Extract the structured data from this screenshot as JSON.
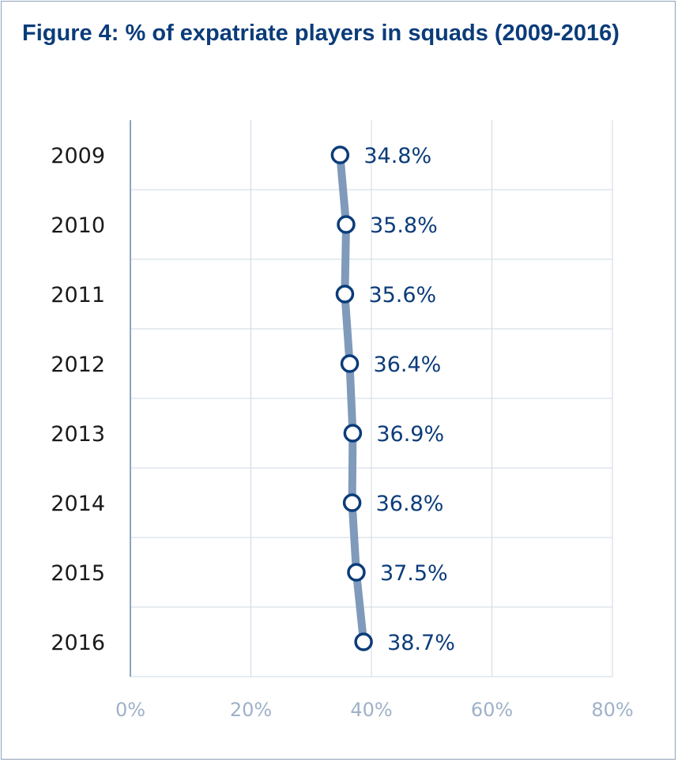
{
  "title": "Figure 4: % of expatriate players in squads (2009-2016)",
  "colors": {
    "title": "#0b3c7a",
    "line": "#7f9abb",
    "marker_stroke": "#0b3c7a",
    "marker_fill": "#ffffff",
    "grid": "#cfd8e3",
    "axis": "#8ea3bd",
    "tick_label": "#9fb1c8",
    "data_label": "#0b3c7a"
  },
  "chart_data": {
    "type": "line",
    "orientation": "horizontal",
    "title": "Figure 4: % of expatriate players in squads (2009-2016)",
    "categories": [
      "2009",
      "2010",
      "2011",
      "2012",
      "2013",
      "2014",
      "2015",
      "2016"
    ],
    "values": [
      34.8,
      35.8,
      35.6,
      36.4,
      36.9,
      36.8,
      37.5,
      38.7
    ],
    "data_labels": [
      "34.8%",
      "35.8%",
      "35.6%",
      "36.4%",
      "36.9%",
      "36.8%",
      "37.5%",
      "38.7%"
    ],
    "xlim": [
      0,
      80
    ],
    "xticks": [
      0,
      20,
      40,
      60,
      80
    ],
    "xtick_labels": [
      "0%",
      "20%",
      "40%",
      "60%",
      "80%"
    ],
    "grid": true,
    "legend": "none"
  }
}
